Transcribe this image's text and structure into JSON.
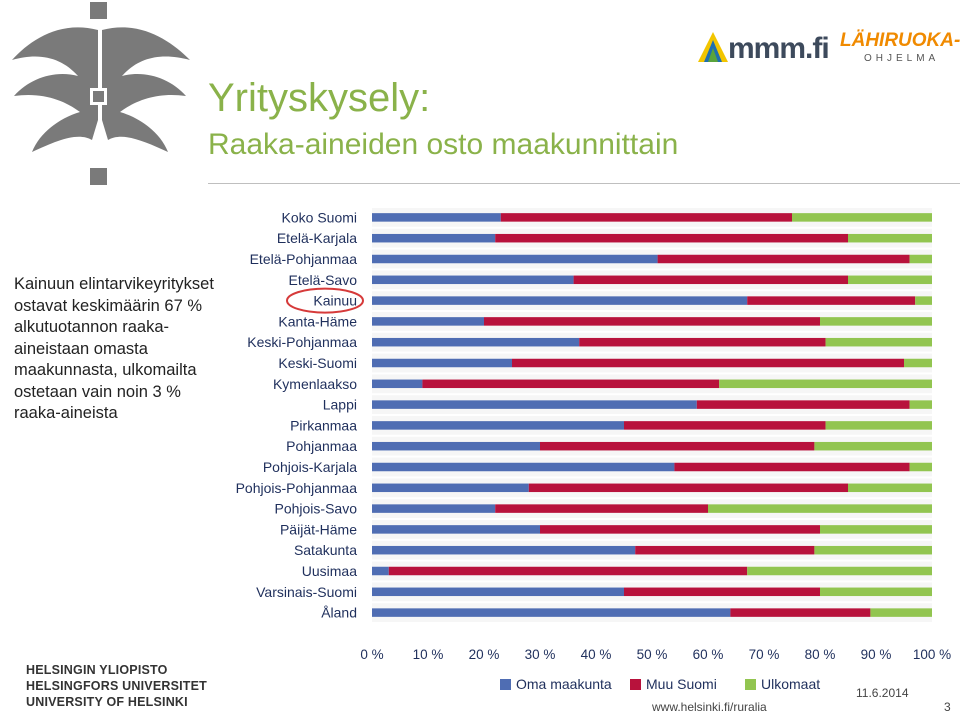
{
  "slide": {
    "title": "Yrityskysely:",
    "subtitle": "Raaka-aineiden osto maakunnittain",
    "side_text": "Kainuun elintarvikeyritykset ostavat keskimäärin 67 % alkutuotannon raaka-aineistaan omasta maakunnasta, ulkomailta ostetaan vain noin 3 % raaka-aineista",
    "date": "11.6.2014",
    "url": "www.helsinki.fi/ruralia",
    "page_number": "3"
  },
  "university": {
    "line1": "HELSINGIN YLIOPISTO",
    "line2": "HELSINGFORS UNIVERSITET",
    "line3": "UNIVERSITY OF HELSINKI"
  },
  "partners": {
    "mmm": "mmm.fi",
    "lahiruoka": "LÄHIRUOKA-",
    "ohjelma": "OHJELMA"
  },
  "colors": {
    "title_green": "#8ab24a",
    "series_blue": "#4f6db3",
    "series_red": "#b8123c",
    "series_green": "#92c550",
    "highlight_circle": "#d63a3a"
  },
  "icons": {
    "university_logo": "helsinki-flame-logo-icon",
    "mmm_logo": "mmm-triangle-logo-icon"
  },
  "chart_data": {
    "type": "bar",
    "orientation": "horizontal",
    "stacked": "percent",
    "categories": [
      "Koko Suomi",
      "Etelä-Karjala",
      "Etelä-Pohjanmaa",
      "Etelä-Savo",
      "Kainuu",
      "Kanta-Häme",
      "Keski-Pohjanmaa",
      "Keski-Suomi",
      "Kymenlaakso",
      "Lappi",
      "Pirkanmaa",
      "Pohjanmaa",
      "Pohjois-Karjala",
      "Pohjois-Pohjanmaa",
      "Pohjois-Savo",
      "Päijät-Häme",
      "Satakunta",
      "Uusimaa",
      "Varsinais-Suomi",
      "Åland"
    ],
    "series": [
      {
        "name": "Oma maakunta",
        "values": [
          23,
          22,
          51,
          36,
          67,
          20,
          37,
          25,
          9,
          58,
          45,
          30,
          54,
          28,
          22,
          30,
          47,
          3,
          45,
          64
        ]
      },
      {
        "name": "Muu Suomi",
        "values": [
          52,
          63,
          45,
          49,
          30,
          60,
          44,
          70,
          53,
          38,
          36,
          49,
          42,
          57,
          38,
          50,
          32,
          64,
          35,
          25
        ]
      },
      {
        "name": "Ulkomaat",
        "values": [
          25,
          15,
          4,
          15,
          3,
          20,
          19,
          5,
          38,
          4,
          19,
          21,
          4,
          15,
          40,
          20,
          21,
          33,
          20,
          11
        ]
      }
    ],
    "xlim": [
      0,
      100
    ],
    "x_ticks": [
      "0 %",
      "10 %",
      "20 %",
      "30 %",
      "40 %",
      "50 %",
      "60 %",
      "70 %",
      "80 %",
      "90 %",
      "100 %"
    ],
    "highlight_category": "Kainuu",
    "legend_position": "bottom",
    "grid": false
  }
}
